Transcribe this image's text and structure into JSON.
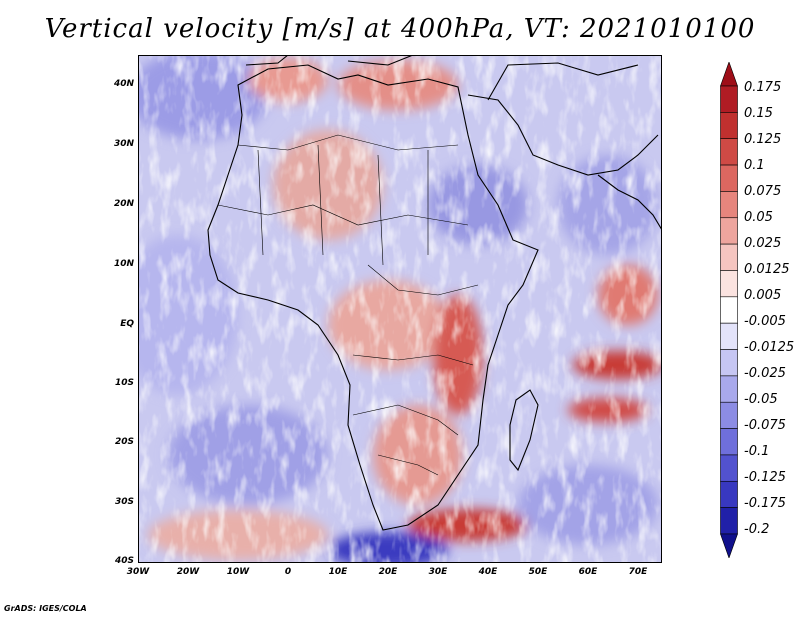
{
  "title": "Vertical velocity [m/s] at 400hPa, VT: 2021010100",
  "lat_labels": [
    "40N",
    "30N",
    "20N",
    "10N",
    "EQ",
    "10S",
    "20S",
    "30S",
    "40S"
  ],
  "lon_labels": [
    "30W",
    "20W",
    "10W",
    "0",
    "10E",
    "20E",
    "30E",
    "40E",
    "50E",
    "60E",
    "70E"
  ],
  "colorbar": {
    "labels": [
      "0.175",
      "0.15",
      "0.125",
      "0.1",
      "0.075",
      "0.05",
      "0.025",
      "0.0125",
      "0.005",
      "-0.005",
      "-0.0125",
      "-0.025",
      "-0.05",
      "-0.075",
      "-0.1",
      "-0.125",
      "-0.175",
      "-0.2"
    ],
    "colors": [
      "#9e0e18",
      "#b01c24",
      "#c0302f",
      "#cf4a45",
      "#dc6760",
      "#e6857d",
      "#eea59e",
      "#f5c5c0",
      "#fbe3e0",
      "#ffffff",
      "#e3e3fa",
      "#c6c6f3",
      "#a9a9ec",
      "#8c8ce4",
      "#6f6fdb",
      "#5252cf",
      "#3838c0",
      "#2020a8",
      "#10108c"
    ]
  },
  "colors": {
    "land_outline": "#000000",
    "background": "#ffffff"
  },
  "credit": "GrADS: IGES/COLA"
}
